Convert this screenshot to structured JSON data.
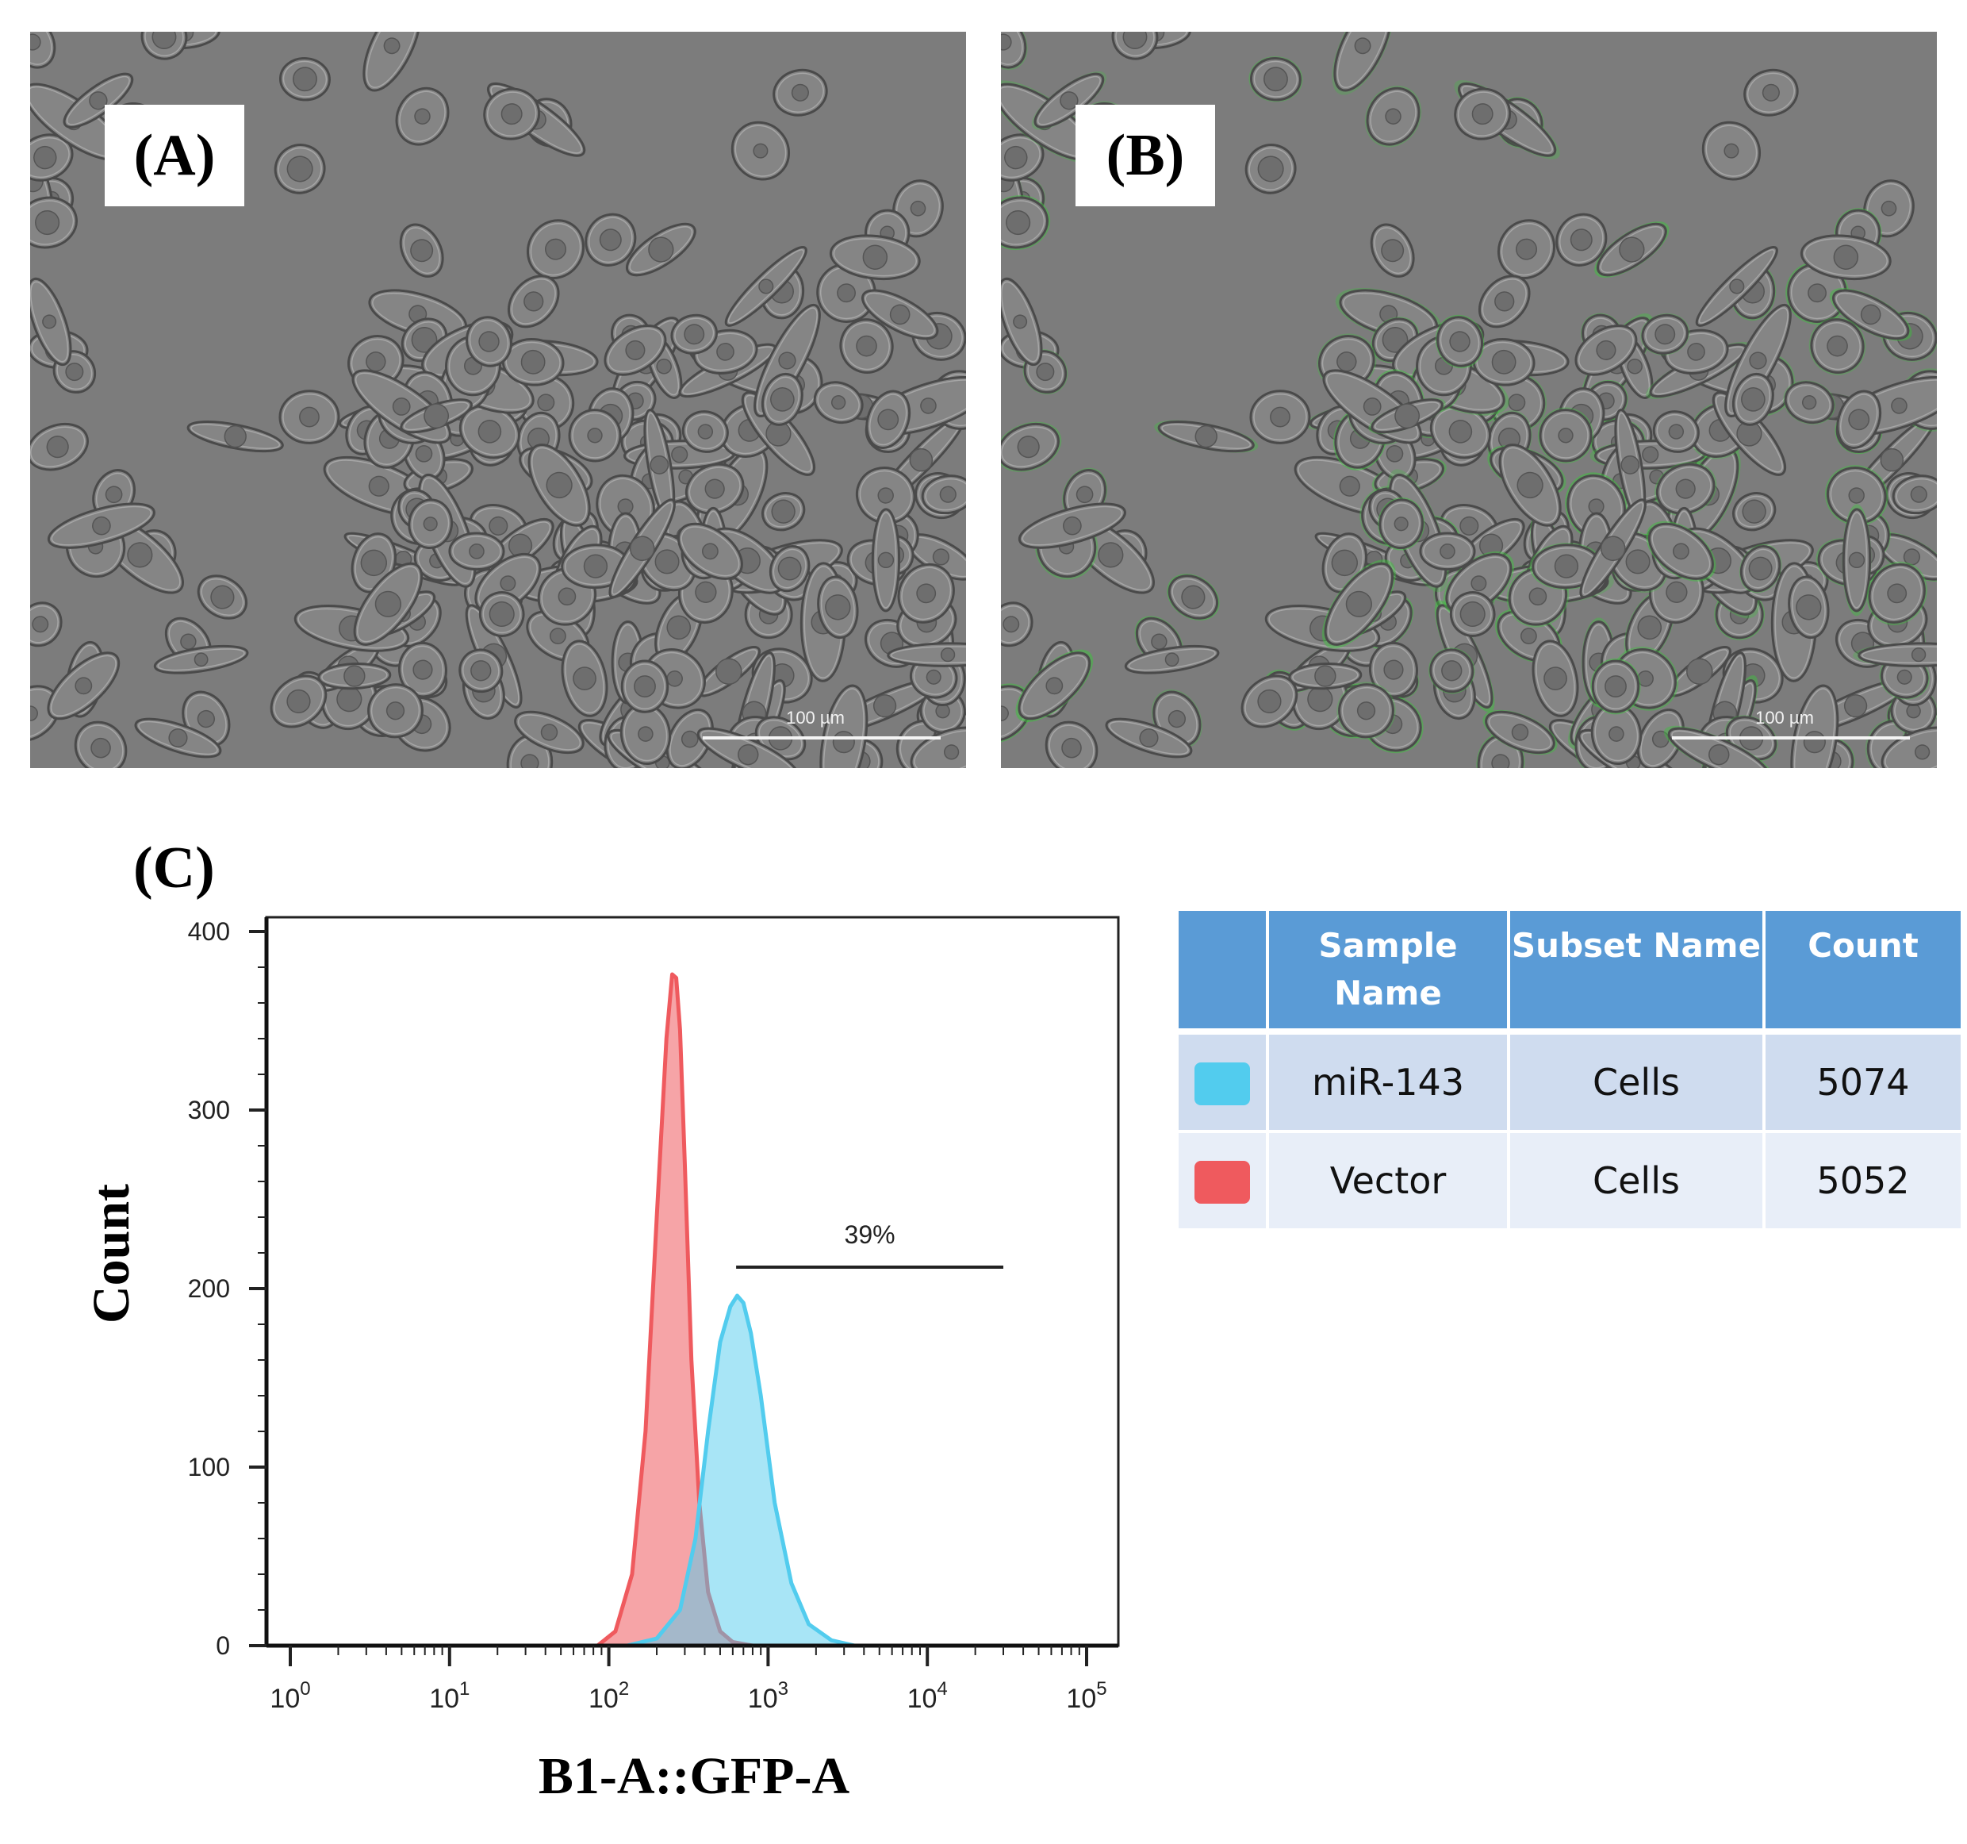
{
  "panels": {
    "a": {
      "label": "(A)",
      "scale_text": "100 µm"
    },
    "b": {
      "label": "(B)",
      "scale_text": "100 µm"
    },
    "c": {
      "label": "(C)"
    }
  },
  "colors": {
    "mir143": "#52ccee",
    "vector": "#ef5a5e",
    "table_header": "#5a9bd6",
    "gfp_green": "#3cc43c"
  },
  "chart_data": {
    "type": "area",
    "xlabel": "B1-A::GFP-A",
    "ylabel": "Count",
    "x_scale": "log",
    "xlim": [
      1,
      100000
    ],
    "ylim": [
      0,
      400
    ],
    "x_tick_labels": [
      {
        "value": 1,
        "base": "10",
        "exp": "0"
      },
      {
        "value": 10,
        "base": "10",
        "exp": "1"
      },
      {
        "value": 100,
        "base": "10",
        "exp": "2"
      },
      {
        "value": 1000,
        "base": "10",
        "exp": "3"
      },
      {
        "value": 10000,
        "base": "10",
        "exp": "4"
      },
      {
        "value": 100000,
        "base": "10",
        "exp": "5"
      }
    ],
    "y_ticks": [
      0,
      100,
      200,
      300,
      400
    ],
    "gate": {
      "label": "39%",
      "x_start": 630,
      "x_end": 30000,
      "y": 212
    },
    "series": [
      {
        "name": "Vector",
        "x": [
          85,
          110,
          140,
          170,
          200,
          230,
          250,
          265,
          280,
          300,
          330,
          370,
          420,
          500,
          600,
          800
        ],
        "y": [
          0,
          8,
          40,
          120,
          240,
          340,
          376,
          374,
          345,
          270,
          160,
          80,
          30,
          8,
          2,
          0
        ]
      },
      {
        "name": "miR-143",
        "x": [
          130,
          200,
          280,
          350,
          420,
          500,
          580,
          640,
          700,
          780,
          900,
          1100,
          1400,
          1800,
          2500,
          3500
        ],
        "y": [
          0,
          4,
          20,
          60,
          120,
          170,
          190,
          196,
          192,
          175,
          140,
          80,
          35,
          12,
          3,
          0
        ]
      }
    ]
  },
  "table": {
    "headers": [
      "",
      "Sample Name",
      "Subset Name",
      "Count"
    ],
    "rows": [
      {
        "sample": "miR-143",
        "subset": "Cells",
        "count": "5074"
      },
      {
        "sample": "Vector",
        "subset": "Cells",
        "count": "5052"
      }
    ]
  }
}
